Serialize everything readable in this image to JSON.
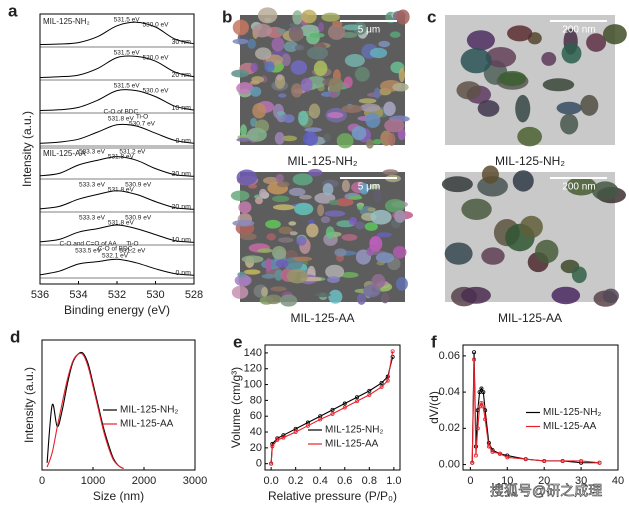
{
  "chart_data": [
    {
      "type": "stacked-line",
      "panel_label": "a",
      "xlabel": "Binding energy (eV)",
      "ylabel": "Intensity (a.u.)",
      "xlim": [
        536,
        528
      ],
      "xticks": [
        536,
        534,
        532,
        530,
        528
      ],
      "x": [
        536,
        535,
        534,
        533,
        532,
        531,
        530,
        529,
        528
      ],
      "samples": [
        {
          "name": "MIL-125-NH₂",
          "spectra": [
            {
              "name": "30 nm",
              "color": "#000000",
              "values": [
                0.02,
                0.04,
                0.1,
                0.35,
                0.8,
                0.95,
                0.75,
                0.25,
                0.05
              ],
              "annotations": [
                {
                  "x": 531.5,
                  "lines": [
                    "531.5 eV"
                  ]
                },
                {
                  "x": 530.0,
                  "lines": [
                    "530.0 eV"
                  ]
                }
              ]
            },
            {
              "name": "20 nm",
              "color": "#000000",
              "values": [
                0.02,
                0.05,
                0.12,
                0.4,
                0.85,
                0.9,
                0.7,
                0.25,
                0.05
              ],
              "annotations": [
                {
                  "x": 531.5,
                  "lines": [
                    "531.5 eV"
                  ]
                },
                {
                  "x": 530.0,
                  "lines": [
                    "530.0 eV"
                  ]
                }
              ]
            },
            {
              "name": "10 nm",
              "color": "#000000",
              "values": [
                0.02,
                0.05,
                0.15,
                0.45,
                0.85,
                0.85,
                0.6,
                0.2,
                0.04
              ],
              "annotations": [
                {
                  "x": 531.5,
                  "lines": [
                    "531.5 eV"
                  ]
                },
                {
                  "x": 530.0,
                  "lines": [
                    "530.0 eV"
                  ]
                }
              ]
            },
            {
              "name": "0 nm",
              "color": "#000000",
              "values": [
                0.03,
                0.08,
                0.2,
                0.5,
                0.8,
                0.75,
                0.45,
                0.15,
                0.03
              ],
              "annotations": [
                {
                  "x": 531.8,
                  "lines": [
                    "C-O of BDC",
                    "531.8 eV"
                  ]
                },
                {
                  "x": 530.7,
                  "lines": [
                    "Ti-O",
                    "530.7 eV"
                  ]
                }
              ]
            }
          ]
        },
        {
          "name": "MIL-125-AA",
          "spectra": [
            {
              "name": "30 nm",
              "color": "#000000",
              "values": [
                0.05,
                0.15,
                0.5,
                0.7,
                0.85,
                0.7,
                0.35,
                0.1,
                0.03
              ],
              "annotations": [
                {
                  "x": 533.3,
                  "lines": [
                    "533.3 eV"
                  ]
                },
                {
                  "x": 531.8,
                  "lines": [
                    "531.8 eV"
                  ]
                },
                {
                  "x": 531.2,
                  "lines": [
                    "531.2 eV"
                  ]
                }
              ]
            },
            {
              "name": "20 nm",
              "color": "#000000",
              "values": [
                0.05,
                0.15,
                0.45,
                0.65,
                0.8,
                0.65,
                0.35,
                0.1,
                0.03
              ],
              "annotations": [
                {
                  "x": 533.3,
                  "lines": [
                    "533.3 eV"
                  ]
                },
                {
                  "x": 531.8,
                  "lines": [
                    "531.8 eV"
                  ]
                },
                {
                  "x": 530.9,
                  "lines": [
                    "530.9 eV"
                  ]
                }
              ]
            },
            {
              "name": "10 nm",
              "color": "#000000",
              "values": [
                0.05,
                0.15,
                0.45,
                0.6,
                0.75,
                0.6,
                0.35,
                0.1,
                0.03
              ],
              "annotations": [
                {
                  "x": 533.3,
                  "lines": [
                    "533.3 eV"
                  ]
                },
                {
                  "x": 531.8,
                  "lines": [
                    "531.8 eV"
                  ]
                },
                {
                  "x": 530.9,
                  "lines": [
                    "530.9 eV"
                  ]
                }
              ]
            },
            {
              "name": "0 nm",
              "color": "#000000",
              "values": [
                0.05,
                0.2,
                0.5,
                0.6,
                0.7,
                0.55,
                0.3,
                0.1,
                0.03
              ],
              "annotations": [
                {
                  "x": 533.5,
                  "lines": [
                    "C-O and C=O of AA",
                    "533.5 eV"
                  ]
                },
                {
                  "x": 532.1,
                  "lines": [
                    "C-O of BDC",
                    "532.1 eV"
                  ]
                },
                {
                  "x": 531.2,
                  "lines": [
                    "Ti-O",
                    "531.2 eV"
                  ]
                }
              ]
            }
          ]
        }
      ]
    },
    {
      "type": "line",
      "panel_label": "d",
      "xlabel": "Size (nm)",
      "ylabel": "Intensity (a.u.)",
      "xlim": [
        0,
        3000
      ],
      "xticks": [
        0,
        1000,
        2000,
        3000
      ],
      "ylim": [
        0,
        0.9
      ],
      "legend": "center right",
      "markers": false,
      "x": [
        100,
        200,
        300,
        400,
        500,
        600,
        700,
        800,
        900,
        1000,
        1100,
        1200,
        1300,
        1400,
        1500,
        1600
      ],
      "series": [
        {
          "name": "MIL-125-NH₂",
          "color": "#000000",
          "values": [
            0.05,
            0.45,
            0.3,
            0.42,
            0.6,
            0.74,
            0.8,
            0.81,
            0.74,
            0.6,
            0.45,
            0.3,
            0.18,
            0.08,
            0.03,
            0.01
          ]
        },
        {
          "name": "MIL-125-AA",
          "color": "#e8202a",
          "values": [
            0.02,
            0.12,
            0.3,
            0.47,
            0.63,
            0.75,
            0.8,
            0.8,
            0.72,
            0.58,
            0.43,
            0.28,
            0.16,
            0.07,
            0.03,
            0.01
          ]
        }
      ]
    },
    {
      "type": "line",
      "panel_label": "e",
      "xlabel": "Relative pressure (P/P₀)",
      "ylabel": "Volume (cm/g³)",
      "xlim": [
        -0.05,
        1.05
      ],
      "xticks": [
        {
          "value": 0,
          "label": "0.0"
        },
        0.2,
        0.4,
        0.6,
        0.8,
        {
          "value": 1,
          "label": "1.0"
        }
      ],
      "ylim": [
        -8,
        150
      ],
      "yticks": [
        0,
        20,
        40,
        60,
        80,
        100,
        120,
        140
      ],
      "legend": "lower right",
      "markers": true,
      "x": [
        0.0,
        0.01,
        0.05,
        0.1,
        0.2,
        0.3,
        0.4,
        0.5,
        0.6,
        0.7,
        0.8,
        0.9,
        0.95,
        0.99
      ],
      "series": [
        {
          "name": "MIL-125-NH₂",
          "color": "#000000",
          "values": [
            0,
            25,
            32,
            36,
            44,
            52,
            60,
            68,
            76,
            84,
            92,
            102,
            110,
            135
          ]
        },
        {
          "name": "MIL-125-AA",
          "color": "#e8202a",
          "values": [
            0,
            22,
            30,
            33,
            40,
            48,
            56,
            63,
            71,
            79,
            87,
            97,
            105,
            142
          ]
        }
      ]
    },
    {
      "type": "line",
      "panel_label": "f",
      "ylabel": "dV/(d)",
      "xlim": [
        -2,
        40
      ],
      "xticks": [
        0,
        10,
        20,
        30,
        40
      ],
      "ylim": [
        -0.003,
        0.066
      ],
      "yticks": [
        {
          "value": 0,
          "label": "0.00"
        },
        {
          "value": 0.02,
          "label": "0.02"
        },
        {
          "value": 0.04,
          "label": "0.04"
        },
        {
          "value": 0.06,
          "label": "0.06"
        }
      ],
      "legend": "center right",
      "markers": true,
      "x": [
        0.5,
        1,
        1.5,
        2,
        2.5,
        3,
        3.5,
        4,
        5,
        6,
        8,
        10,
        15,
        20,
        25,
        30,
        35
      ],
      "series": [
        {
          "name": "MIL-125-NH₂",
          "color": "#000000",
          "values": [
            0.001,
            0.062,
            0.01,
            0.03,
            0.04,
            0.042,
            0.04,
            0.03,
            0.012,
            0.008,
            0.006,
            0.005,
            0.003,
            0.002,
            0.002,
            0.001,
            0.001
          ]
        },
        {
          "name": "MIL-125-AA",
          "color": "#e8202a",
          "values": [
            0.001,
            0.058,
            0.005,
            0.02,
            0.032,
            0.034,
            0.032,
            0.025,
            0.01,
            0.007,
            0.006,
            0.004,
            0.003,
            0.002,
            0.002,
            0.002,
            0.001
          ]
        }
      ]
    }
  ],
  "micrographs": [
    {
      "panel_label": "b",
      "images": [
        {
          "caption": "MIL-125-NH₂",
          "scale_bar": "5 μm"
        },
        {
          "caption": "MIL-125-AA",
          "scale_bar": "5 μm"
        }
      ]
    },
    {
      "panel_label": "c",
      "images": [
        {
          "caption": "MIL-125-NH₂",
          "scale_bar": "200 nm"
        },
        {
          "caption": "MIL-125-AA",
          "scale_bar": "200 nm"
        }
      ]
    }
  ],
  "watermark": "搜狐号@研之成理"
}
